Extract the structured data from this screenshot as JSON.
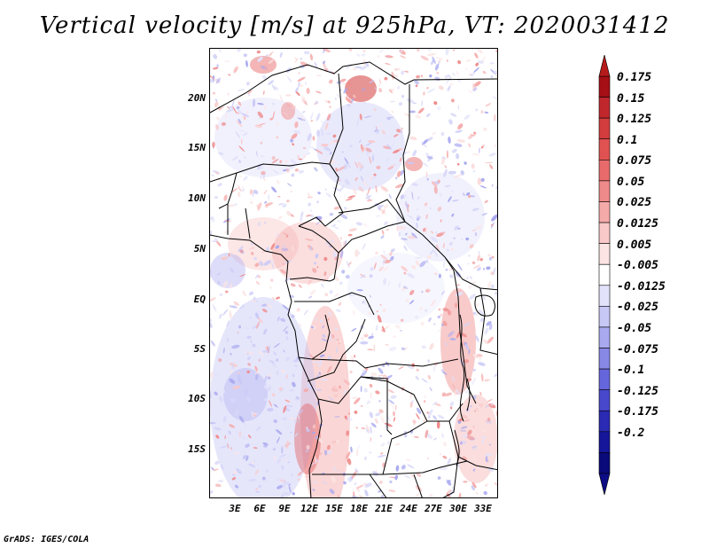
{
  "title": "Vertical velocity [m/s] at 925hPa, VT: 2020031412",
  "credit": "GrADS: IGES/COLA",
  "latitudes": [
    "20N",
    "15N",
    "10N",
    "5N",
    "EQ",
    "5S",
    "10S",
    "15S"
  ],
  "longitudes": [
    "3E",
    "6E",
    "9E",
    "12E",
    "15E",
    "18E",
    "21E",
    "24E",
    "27E",
    "30E",
    "33E"
  ],
  "colorbar": {
    "labels": [
      "0.175",
      "0.15",
      "0.125",
      "0.1",
      "0.075",
      "0.05",
      "0.025",
      "0.0125",
      "0.005",
      "-0.005",
      "-0.0125",
      "-0.025",
      "-0.05",
      "-0.075",
      "-0.1",
      "-0.125",
      "-0.175",
      "-0.2"
    ],
    "colors": [
      "#a50f15",
      "#c0272d",
      "#d43d3d",
      "#e05252",
      "#e86b6b",
      "#ef8a8a",
      "#f5aaaa",
      "#f9c8c8",
      "#fce4e4",
      "#ffffff",
      "#e2e2fb",
      "#c8c8f7",
      "#a9a9f0",
      "#8787e6",
      "#6666dc",
      "#4848cc",
      "#2a2ab4",
      "#16169a",
      "#0a0a7a"
    ],
    "top_color": "#b51b1b",
    "bottom_color": "#0c0c85"
  }
}
